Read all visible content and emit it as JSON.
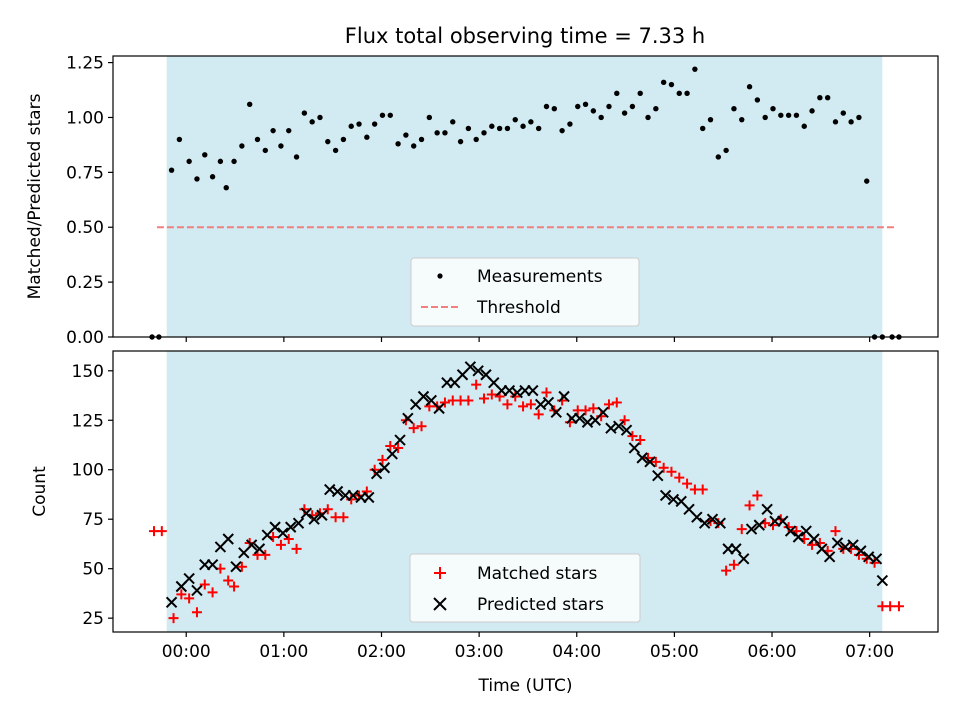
{
  "chart_data": {
    "title": "Flux total observing time = 7.33 h",
    "shaded_interval_hours": [
      -0.2,
      7.13
    ],
    "shade_color": "#add8e6",
    "x_tick_labels": [
      {
        "value": 0,
        "label": "00:00"
      },
      {
        "value": 1,
        "label": "01:00"
      },
      {
        "value": 2,
        "label": "02:00"
      },
      {
        "value": 3,
        "label": "03:00"
      },
      {
        "value": 4,
        "label": "04:00"
      },
      {
        "value": 5,
        "label": "05:00"
      },
      {
        "value": 6,
        "label": "06:00"
      },
      {
        "value": 7,
        "label": "07:00"
      }
    ],
    "xlim": [
      -0.75,
      7.7
    ],
    "xlabel": "Time (UTC)",
    "panels": [
      {
        "id": "ratio",
        "type": "scatter",
        "ylabel": "Matched/Predicted stars",
        "ylim": [
          0,
          1.28
        ],
        "y_ticks": [
          "0.00",
          "0.25",
          "0.50",
          "0.75",
          "1.00",
          "1.25"
        ],
        "threshold": {
          "label": "Threshold",
          "value": 0.5,
          "x_range": [
            -0.3,
            7.25
          ],
          "color": "#f08080"
        },
        "series": [
          {
            "name": "Measurements",
            "color": "#000000",
            "x": [
              -0.35,
              -0.28,
              -0.15,
              -0.07,
              0.03,
              0.11,
              0.19,
              0.27,
              0.35,
              0.41,
              0.49,
              0.57,
              0.65,
              0.73,
              0.81,
              0.89,
              0.97,
              1.05,
              1.13,
              1.21,
              1.29,
              1.37,
              1.45,
              1.53,
              1.61,
              1.69,
              1.77,
              1.85,
              1.93,
              2.01,
              2.09,
              2.17,
              2.25,
              2.33,
              2.41,
              2.49,
              2.57,
              2.65,
              2.73,
              2.81,
              2.89,
              2.97,
              3.05,
              3.13,
              3.21,
              3.29,
              3.37,
              3.45,
              3.53,
              3.61,
              3.69,
              3.77,
              3.85,
              3.93,
              4.01,
              4.09,
              4.17,
              4.25,
              4.33,
              4.41,
              4.49,
              4.57,
              4.65,
              4.73,
              4.81,
              4.89,
              4.97,
              5.05,
              5.13,
              5.21,
              5.29,
              5.37,
              5.45,
              5.53,
              5.61,
              5.69,
              5.77,
              5.85,
              5.93,
              6.01,
              6.09,
              6.17,
              6.25,
              6.33,
              6.41,
              6.49,
              6.57,
              6.65,
              6.73,
              6.81,
              6.89,
              6.97,
              7.05,
              7.13,
              7.23,
              7.3
            ],
            "y": [
              0.0,
              0.0,
              0.76,
              0.9,
              0.8,
              0.72,
              0.83,
              0.73,
              0.8,
              0.68,
              0.8,
              0.87,
              1.06,
              0.9,
              0.85,
              0.94,
              0.87,
              0.94,
              0.82,
              1.02,
              0.98,
              1.0,
              0.89,
              0.85,
              0.9,
              0.96,
              0.97,
              0.91,
              0.97,
              1.01,
              1.01,
              0.88,
              0.92,
              0.87,
              0.9,
              1.0,
              0.93,
              0.93,
              0.98,
              0.89,
              0.95,
              0.9,
              0.93,
              0.96,
              0.95,
              0.95,
              0.99,
              0.96,
              0.98,
              0.95,
              1.05,
              1.04,
              0.94,
              0.97,
              1.05,
              1.06,
              1.03,
              1.0,
              1.05,
              1.11,
              1.02,
              1.05,
              1.11,
              1.0,
              1.04,
              1.16,
              1.15,
              1.11,
              1.11,
              1.22,
              0.95,
              0.99,
              0.82,
              0.85,
              1.04,
              0.99,
              1.14,
              1.08,
              1.0,
              1.04,
              1.01,
              1.01,
              1.01,
              0.96,
              1.03,
              1.09,
              1.09,
              0.98,
              1.02,
              0.98,
              1.0,
              0.71,
              0.0,
              0.0,
              0.0,
              0.0
            ]
          }
        ],
        "legend": {
          "placement": "lower center",
          "entries": [
            "Measurements",
            "Threshold"
          ]
        }
      },
      {
        "id": "counts",
        "type": "scatter",
        "ylabel": "Count",
        "ylim": [
          18,
          160
        ],
        "y_ticks": [
          "25",
          "50",
          "75",
          "100",
          "125",
          "150"
        ],
        "series": [
          {
            "name": "Matched stars",
            "marker": "plus",
            "color": "#ff0000",
            "x": [
              -0.33,
              -0.25,
              -0.13,
              -0.05,
              0.03,
              0.11,
              0.19,
              0.27,
              0.35,
              0.43,
              0.49,
              0.57,
              0.65,
              0.73,
              0.81,
              0.89,
              0.97,
              1.05,
              1.13,
              1.21,
              1.29,
              1.37,
              1.45,
              1.53,
              1.61,
              1.69,
              1.77,
              1.85,
              1.93,
              2.01,
              2.09,
              2.17,
              2.25,
              2.33,
              2.41,
              2.49,
              2.57,
              2.65,
              2.73,
              2.81,
              2.89,
              2.97,
              3.05,
              3.13,
              3.21,
              3.29,
              3.37,
              3.45,
              3.53,
              3.61,
              3.69,
              3.77,
              3.85,
              3.93,
              4.01,
              4.09,
              4.17,
              4.25,
              4.33,
              4.41,
              4.49,
              4.57,
              4.65,
              4.73,
              4.81,
              4.89,
              4.97,
              5.05,
              5.13,
              5.21,
              5.29,
              5.37,
              5.45,
              5.53,
              5.61,
              5.69,
              5.77,
              5.85,
              5.93,
              6.01,
              6.09,
              6.17,
              6.25,
              6.33,
              6.41,
              6.49,
              6.57,
              6.65,
              6.73,
              6.81,
              6.89,
              6.97,
              7.05,
              7.13,
              7.21,
              7.3
            ],
            "y": [
              69,
              69,
              25,
              37,
              35,
              28,
              42,
              38,
              50,
              44,
              41,
              51,
              63,
              57,
              57,
              66,
              62,
              65,
              60,
              80,
              77,
              78,
              80,
              76,
              76,
              85,
              87,
              89,
              100,
              105,
              112,
              111,
              125,
              121,
              122,
              132,
              132,
              134,
              135,
              135,
              135,
              143,
              136,
              138,
              137,
              133,
              137,
              132,
              133,
              128,
              139,
              130,
              135,
              124,
              130,
              130,
              131,
              127,
              133,
              134,
              125,
              117,
              115,
              106,
              104,
              101,
              99,
              96,
              93,
              90,
              90,
              74,
              73,
              49,
              52,
              70,
              82,
              87,
              73,
              72,
              75,
              71,
              69,
              65,
              62,
              63,
              59,
              69,
              60,
              60,
              57,
              55,
              53,
              31,
              31,
              31
            ]
          },
          {
            "name": "Predicted stars",
            "marker": "x",
            "color": "#000000",
            "x": [
              -0.15,
              -0.05,
              0.03,
              0.11,
              0.19,
              0.27,
              0.35,
              0.43,
              0.51,
              0.59,
              0.67,
              0.75,
              0.83,
              0.91,
              0.99,
              1.07,
              1.15,
              1.23,
              1.31,
              1.39,
              1.47,
              1.55,
              1.63,
              1.71,
              1.79,
              1.87,
              1.95,
              2.03,
              2.11,
              2.19,
              2.27,
              2.35,
              2.43,
              2.51,
              2.59,
              2.67,
              2.75,
              2.83,
              2.91,
              2.99,
              3.07,
              3.15,
              3.23,
              3.31,
              3.39,
              3.47,
              3.55,
              3.63,
              3.71,
              3.79,
              3.87,
              3.95,
              4.03,
              4.11,
              4.19,
              4.27,
              4.35,
              4.43,
              4.51,
              4.59,
              4.67,
              4.75,
              4.83,
              4.91,
              4.99,
              5.07,
              5.15,
              5.23,
              5.31,
              5.39,
              5.47,
              5.55,
              5.63,
              5.71,
              5.79,
              5.87,
              5.95,
              6.03,
              6.11,
              6.19,
              6.27,
              6.35,
              6.43,
              6.51,
              6.59,
              6.67,
              6.75,
              6.83,
              6.91,
              6.99,
              7.07,
              7.13
            ],
            "y": [
              33,
              41,
              45,
              39,
              52,
              52,
              61,
              65,
              51,
              58,
              62,
              60,
              67,
              71,
              68,
              71,
              73,
              78,
              75,
              77,
              90,
              89,
              87,
              87,
              86,
              86,
              98,
              101,
              108,
              115,
              126,
              133,
              137,
              135,
              131,
              144,
              144,
              148,
              152,
              150,
              148,
              144,
              140,
              140,
              139,
              140,
              140,
              133,
              134,
              129,
              137,
              126,
              126,
              124,
              125,
              129,
              121,
              122,
              120,
              111,
              106,
              104,
              97,
              87,
              85,
              84,
              80,
              76,
              73,
              75,
              73,
              60,
              60,
              55,
              70,
              72,
              80,
              74,
              74,
              69,
              66,
              69,
              65,
              60,
              56,
              63,
              61,
              62,
              59,
              56,
              55,
              44
            ]
          }
        ],
        "legend": {
          "placement": "lower center",
          "entries": [
            "Matched stars",
            "Predicted stars"
          ]
        }
      }
    ]
  }
}
